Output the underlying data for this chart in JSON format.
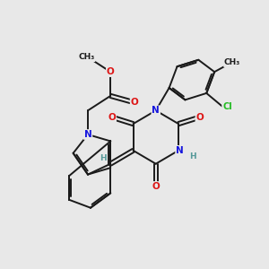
{
  "bg_color": "#e8e8e8",
  "bond_color": "#1a1a1a",
  "bond_width": 1.4,
  "atom_colors": {
    "N": "#1515dd",
    "O": "#dd1515",
    "Cl": "#22bb22",
    "H": "#559999",
    "C": "#1a1a1a"
  },
  "font_size_atom": 7.5
}
